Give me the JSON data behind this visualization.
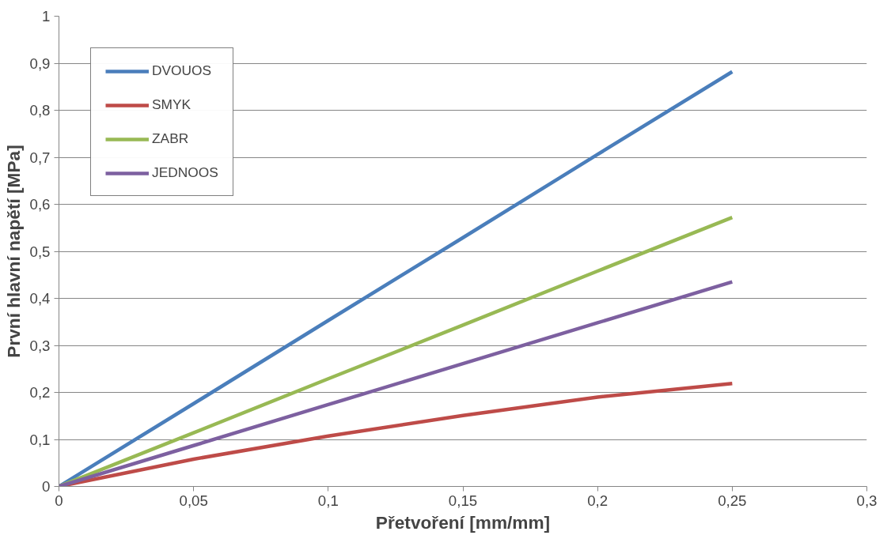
{
  "chart_data": {
    "type": "line",
    "xlabel": "Přetvoření [mm/mm]",
    "ylabel": "První hlavní napětí [MPa]",
    "xlim": [
      0,
      0.3
    ],
    "xticks": [
      0,
      {
        "value": 0.05,
        "label": "0,05"
      },
      {
        "value": 0.1,
        "label": "0,1"
      },
      {
        "value": 0.15,
        "label": "0,15"
      },
      {
        "value": 0.2,
        "label": "0,2"
      },
      {
        "value": 0.25,
        "label": "0,25"
      },
      {
        "value": 0.3,
        "label": "0,3"
      }
    ],
    "ylim": [
      0,
      1
    ],
    "yticks": [
      0,
      {
        "value": 0.1,
        "label": "0,1"
      },
      {
        "value": 0.2,
        "label": "0,2"
      },
      {
        "value": 0.3,
        "label": "0,3"
      },
      {
        "value": 0.4,
        "label": "0,4"
      },
      {
        "value": 0.5,
        "label": "0,5"
      },
      {
        "value": 0.6,
        "label": "0,6"
      },
      {
        "value": 0.7,
        "label": "0,7"
      },
      {
        "value": 0.8,
        "label": "0,8"
      },
      {
        "value": 0.9,
        "label": "0,9"
      },
      1
    ],
    "grid": "y",
    "legend": "top left",
    "marker": "none",
    "line_style": "solid",
    "x": [
      0,
      0.05,
      0.1,
      0.15,
      0.2,
      0.25
    ],
    "series": [
      {
        "name": "DVOUOS",
        "color": "#4a7ebb",
        "values": [
          0,
          0.176,
          0.353,
          0.529,
          0.706,
          0.882
        ]
      },
      {
        "name": "SMYK",
        "color": "#be4b48",
        "values": [
          0,
          0.058,
          0.107,
          0.151,
          0.19,
          0.219
        ]
      },
      {
        "name": "ZABR",
        "color": "#98b954",
        "values": [
          0,
          0.114,
          0.229,
          0.343,
          0.458,
          0.572
        ]
      },
      {
        "name": "JEDNOOS",
        "color": "#7d60a0",
        "values": [
          0,
          0.087,
          0.174,
          0.261,
          0.348,
          0.435
        ]
      }
    ]
  }
}
